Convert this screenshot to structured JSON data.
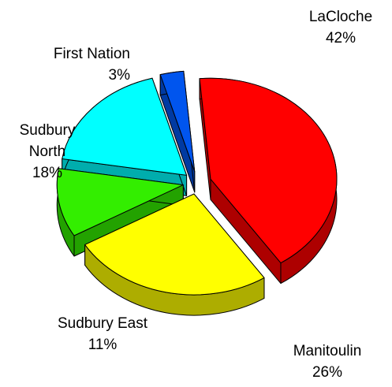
{
  "chart_data": {
    "type": "pie",
    "categories": [
      "LaCloche",
      "Manitoulin",
      "Sudbury East",
      "Sudbury North",
      "First Nation"
    ],
    "values": [
      42,
      26,
      11,
      18,
      3
    ],
    "value_labels": [
      "42%",
      "26%",
      "11%",
      "18%",
      "3%"
    ],
    "colors": [
      "#ff0000",
      "#ffff00",
      "#33ee00",
      "#00ffff",
      "#0055ee"
    ]
  }
}
